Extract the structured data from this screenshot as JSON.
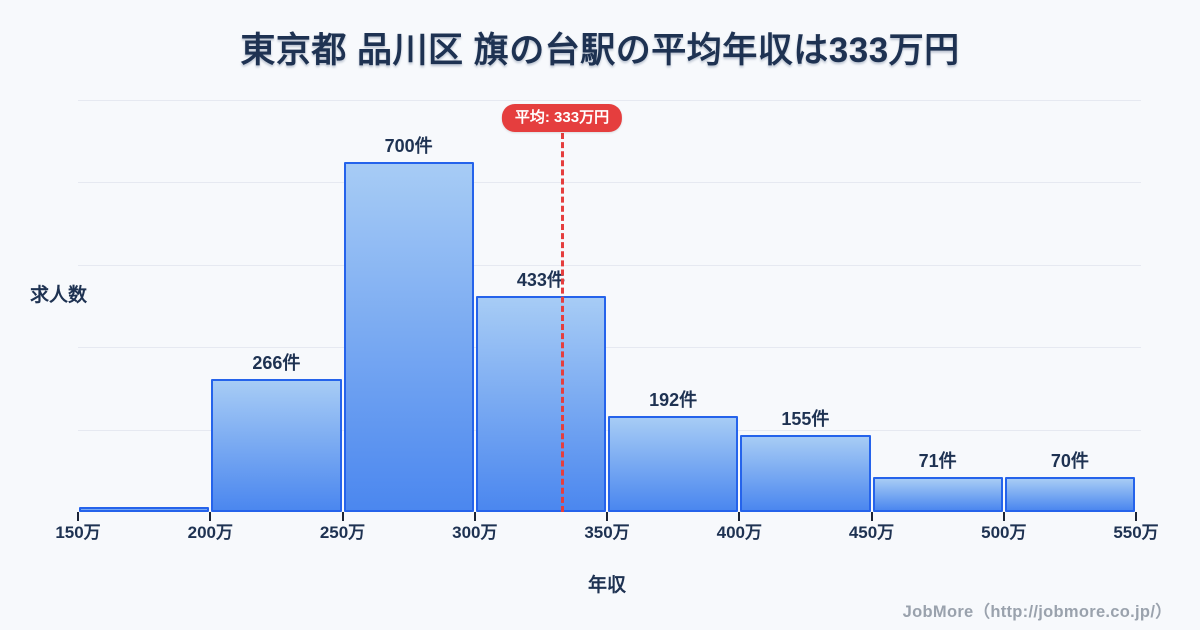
{
  "chart_data": {
    "type": "bar",
    "subtype": "histogram",
    "title": "東京都 品川区 旗の台駅の平均年収は333万円",
    "xlabel": "年収",
    "ylabel": "求人数",
    "unit_suffix": "件",
    "bins": {
      "start": 150,
      "end": 550,
      "size": 50,
      "tick_labels": [
        "150万",
        "200万",
        "250万",
        "300万",
        "350万",
        "400万",
        "450万",
        "500万",
        "550万"
      ]
    },
    "values": [
      10,
      266,
      700,
      433,
      192,
      155,
      71,
      70
    ],
    "bar_value_labels": [
      "",
      "266件",
      "700件",
      "433件",
      "192件",
      "155件",
      "71件",
      "70件"
    ],
    "average_line": {
      "value": 333,
      "label": "平均: 333万円"
    },
    "ylim": [
      0,
      824
    ],
    "grid": "horizontal",
    "gridline_count": 5,
    "legend": "none",
    "colors": {
      "background": "#f7f9fc",
      "title_text": "#1e3252",
      "bar_border": "#2563eb",
      "bar_fill_top": "#a7ccf5",
      "bar_fill_bottom": "#4b87ef",
      "average": "#e53e3e",
      "grid": "#e6e9f1",
      "tick": "#1b2437",
      "footer_text": "#9aa2ad"
    }
  },
  "footer": {
    "credit": "JobMore（http://jobmore.co.jp/）"
  }
}
